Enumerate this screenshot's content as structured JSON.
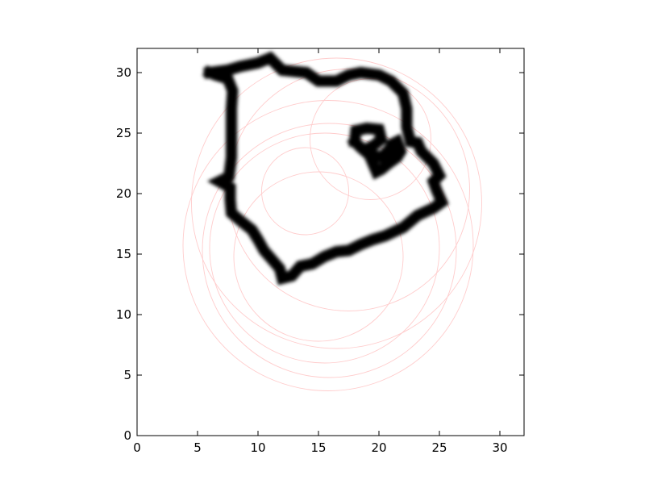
{
  "chart_data": {
    "type": "scatter",
    "title": "",
    "xlabel": "",
    "ylabel": "",
    "xlim": [
      0,
      32
    ],
    "ylim": [
      0,
      32
    ],
    "x_ticks": [
      0,
      5,
      10,
      15,
      20,
      25,
      30
    ],
    "y_ticks": [
      0,
      5,
      10,
      15,
      20,
      25,
      30
    ],
    "x_tick_labels": [
      "0",
      "5",
      "10",
      "15",
      "20",
      "25",
      "30"
    ],
    "y_tick_labels": [
      "0",
      "5",
      "10",
      "15",
      "20",
      "25",
      "30"
    ],
    "grid": false,
    "legend": "none",
    "image_color": "#000000",
    "circle_color": "#ffcccc",
    "image_strokes": [
      {
        "name": "outline",
        "points": [
          [
            6,
            30
          ],
          [
            7.5,
            30.2
          ],
          [
            8.5,
            30.5
          ],
          [
            10,
            30.8
          ],
          [
            11,
            31.2
          ],
          [
            12,
            30.2
          ],
          [
            14,
            30
          ],
          [
            15,
            29.3
          ],
          [
            16.5,
            29.3
          ],
          [
            17.5,
            29.8
          ],
          [
            18.5,
            30
          ],
          [
            20,
            29.8
          ],
          [
            21,
            29.3
          ],
          [
            22,
            28.3
          ],
          [
            22.3,
            27
          ],
          [
            22.3,
            25.5
          ],
          [
            22.6,
            24.3
          ],
          [
            23.2,
            24.2
          ],
          [
            23.5,
            23.5
          ],
          [
            24.5,
            22.5
          ],
          [
            25,
            21.5
          ],
          [
            24.5,
            21
          ],
          [
            24.8,
            20.2
          ],
          [
            25.2,
            19.3
          ],
          [
            24.5,
            18.8
          ],
          [
            23.2,
            18.2
          ],
          [
            22,
            17.2
          ],
          [
            20.5,
            16.5
          ],
          [
            19.5,
            16.2
          ],
          [
            18.5,
            15.8
          ],
          [
            17.5,
            15.3
          ],
          [
            16.5,
            15.2
          ],
          [
            15.5,
            14.8
          ],
          [
            14.5,
            14.2
          ],
          [
            13.5,
            14
          ],
          [
            12.8,
            13.2
          ],
          [
            12,
            13
          ],
          [
            11.8,
            13.8
          ],
          [
            11.2,
            14.5
          ],
          [
            10.5,
            15.3
          ],
          [
            10,
            16.2
          ],
          [
            9.5,
            17
          ],
          [
            8.5,
            17.8
          ],
          [
            7.8,
            18.4
          ],
          [
            7.7,
            19.5
          ],
          [
            7.7,
            20.5
          ],
          [
            6.8,
            21
          ],
          [
            7.6,
            21.4
          ],
          [
            7.8,
            23
          ],
          [
            7.8,
            25
          ],
          [
            7.8,
            27
          ],
          [
            7.9,
            28.5
          ],
          [
            7.5,
            29.5
          ],
          [
            6.5,
            29.8
          ],
          [
            6,
            30
          ]
        ]
      },
      {
        "name": "inner-loop",
        "points": [
          [
            18,
            24.3
          ],
          [
            18.1,
            25.2
          ],
          [
            19,
            25.4
          ],
          [
            20,
            25.3
          ],
          [
            20.2,
            24.5
          ],
          [
            19.6,
            24
          ],
          [
            19.2,
            23.8
          ],
          [
            19.4,
            23.2
          ],
          [
            20.2,
            23
          ],
          [
            20.8,
            23.6
          ],
          [
            21.1,
            24.1
          ],
          [
            21.5,
            24.3
          ],
          [
            21.8,
            23.5
          ],
          [
            21.5,
            23
          ],
          [
            20.8,
            22.5
          ],
          [
            20.2,
            22
          ],
          [
            19.8,
            21.8
          ],
          [
            19.5,
            22.5
          ],
          [
            19.2,
            23.2
          ],
          [
            18.5,
            23.8
          ],
          [
            18,
            24.3
          ]
        ]
      }
    ],
    "circles": [
      {
        "cx": 15.5,
        "cy": 15.5,
        "r": 9.5
      },
      {
        "cx": 15.0,
        "cy": 14.8,
        "r": 7.0
      },
      {
        "cx": 17.5,
        "cy": 20.3,
        "r": 10.0
      },
      {
        "cx": 15.9,
        "cy": 15.3,
        "r": 10.5
      },
      {
        "cx": 13.9,
        "cy": 20.2,
        "r": 3.6
      },
      {
        "cx": 15.8,
        "cy": 15.7,
        "r": 12.0
      },
      {
        "cx": 19.3,
        "cy": 24.5,
        "r": 5.0
      },
      {
        "cx": 16.5,
        "cy": 19.2,
        "r": 12.0
      }
    ]
  }
}
